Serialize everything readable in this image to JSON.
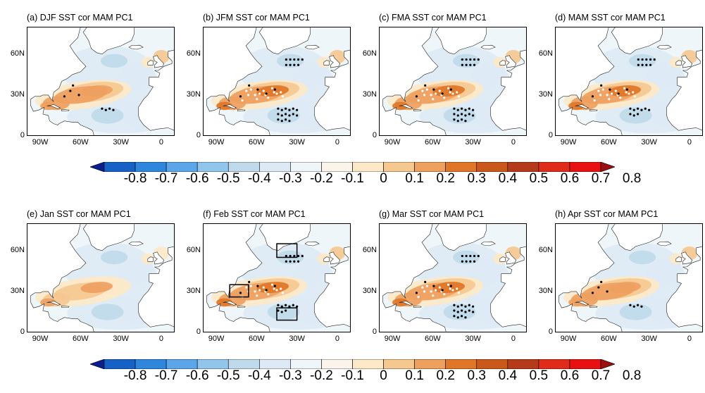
{
  "colors": {
    "scale": [
      "#0a1f8f",
      "#1561c6",
      "#2f86dd",
      "#5ba6e8",
      "#92c5eb",
      "#bfdaea",
      "#dde9f4",
      "#eef6fa",
      "#fbf4ea",
      "#fde8c8",
      "#f5c890",
      "#eea05f",
      "#e07627",
      "#c9581a",
      "#b53a1b",
      "#e02b1b",
      "#e81010",
      "#9a1010"
    ],
    "land": "#ffffff",
    "coast": "#222222",
    "dot_white": "#ffffff",
    "dot_black": "#000000"
  },
  "axes": {
    "lat_ticks": [
      "60N",
      "30N",
      "0"
    ],
    "lon_ticks": [
      "90W",
      "60W",
      "30W",
      "0"
    ]
  },
  "colorbar": {
    "labels": [
      "-0.8",
      "-0.7",
      "-0.6",
      "-0.5",
      "-0.4",
      "-0.3",
      "-0.2",
      "-0.1",
      "0",
      "0.1",
      "0.2",
      "0.3",
      "0.4",
      "0.5",
      "0.6",
      "0.7",
      "0.8"
    ]
  },
  "panels": [
    {
      "title": "(a) DJF SST cor MAM PC1",
      "strength": 0.85,
      "sig": 1
    },
    {
      "title": "(b) JFM SST cor MAM PC1",
      "strength": 1.0,
      "sig": 3
    },
    {
      "title": "(c) FMA SST cor MAM PC1",
      "strength": 1.0,
      "sig": 3
    },
    {
      "title": "(d) MAM SST cor MAM PC1",
      "strength": 0.9,
      "sig": 2
    },
    {
      "title": "(e) Jan SST cor MAM PC1",
      "strength": 0.7,
      "sig": 0
    },
    {
      "title": "(f) Feb SST cor MAM PC1",
      "strength": 0.95,
      "sig": 2,
      "boxes": true
    },
    {
      "title": "(g) Mar SST cor MAM PC1",
      "strength": 1.0,
      "sig": 3
    },
    {
      "title": "(h) Apr SST cor MAM PC1",
      "strength": 0.85,
      "sig": 1
    }
  ]
}
